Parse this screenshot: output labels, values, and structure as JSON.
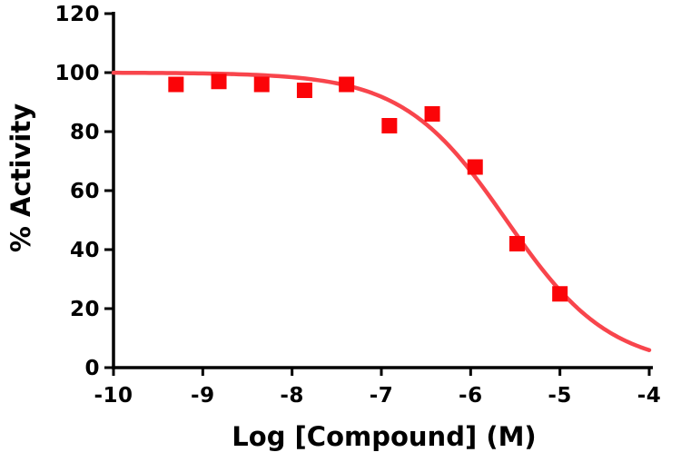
{
  "chart_data": {
    "type": "scatter",
    "subtype": "dose-response-inhibition",
    "title": "",
    "xlabel": "Log [Compound] (M)",
    "ylabel": "% Activity",
    "xlim": [
      -10,
      -4
    ],
    "ylim": [
      0,
      120
    ],
    "x_ticks": [
      "-10",
      "-9",
      "-8",
      "-7",
      "-6",
      "-5",
      "-4"
    ],
    "x_tick_values": [
      -10,
      -9,
      -8,
      -7,
      -6,
      -5,
      -4
    ],
    "y_ticks": [
      "0",
      "20",
      "40",
      "60",
      "80",
      "100",
      "120"
    ],
    "y_tick_values": [
      0,
      20,
      40,
      60,
      80,
      100,
      120
    ],
    "grid": false,
    "legend": false,
    "axis_color": "#000000",
    "series": [
      {
        "marker": "square",
        "marker_color": "#fb0408",
        "marker_size": 17,
        "points": [
          {
            "x": -9.3,
            "y": 96
          },
          {
            "x": -8.82,
            "y": 97
          },
          {
            "x": -8.34,
            "y": 96
          },
          {
            "x": -7.86,
            "y": 94
          },
          {
            "x": -7.39,
            "y": 96
          },
          {
            "x": -6.91,
            "y": 82
          },
          {
            "x": -6.43,
            "y": 86
          },
          {
            "x": -5.95,
            "y": 68
          },
          {
            "x": -5.48,
            "y": 42
          },
          {
            "x": -5.0,
            "y": 25
          }
        ]
      }
    ],
    "fit_curve": {
      "model": "four-parameter-logistic",
      "top": 100,
      "bottom": 0,
      "log_ic50": -5.6,
      "hill_slope": -0.75,
      "color": "#f8454c",
      "line_width": 4.5
    }
  }
}
